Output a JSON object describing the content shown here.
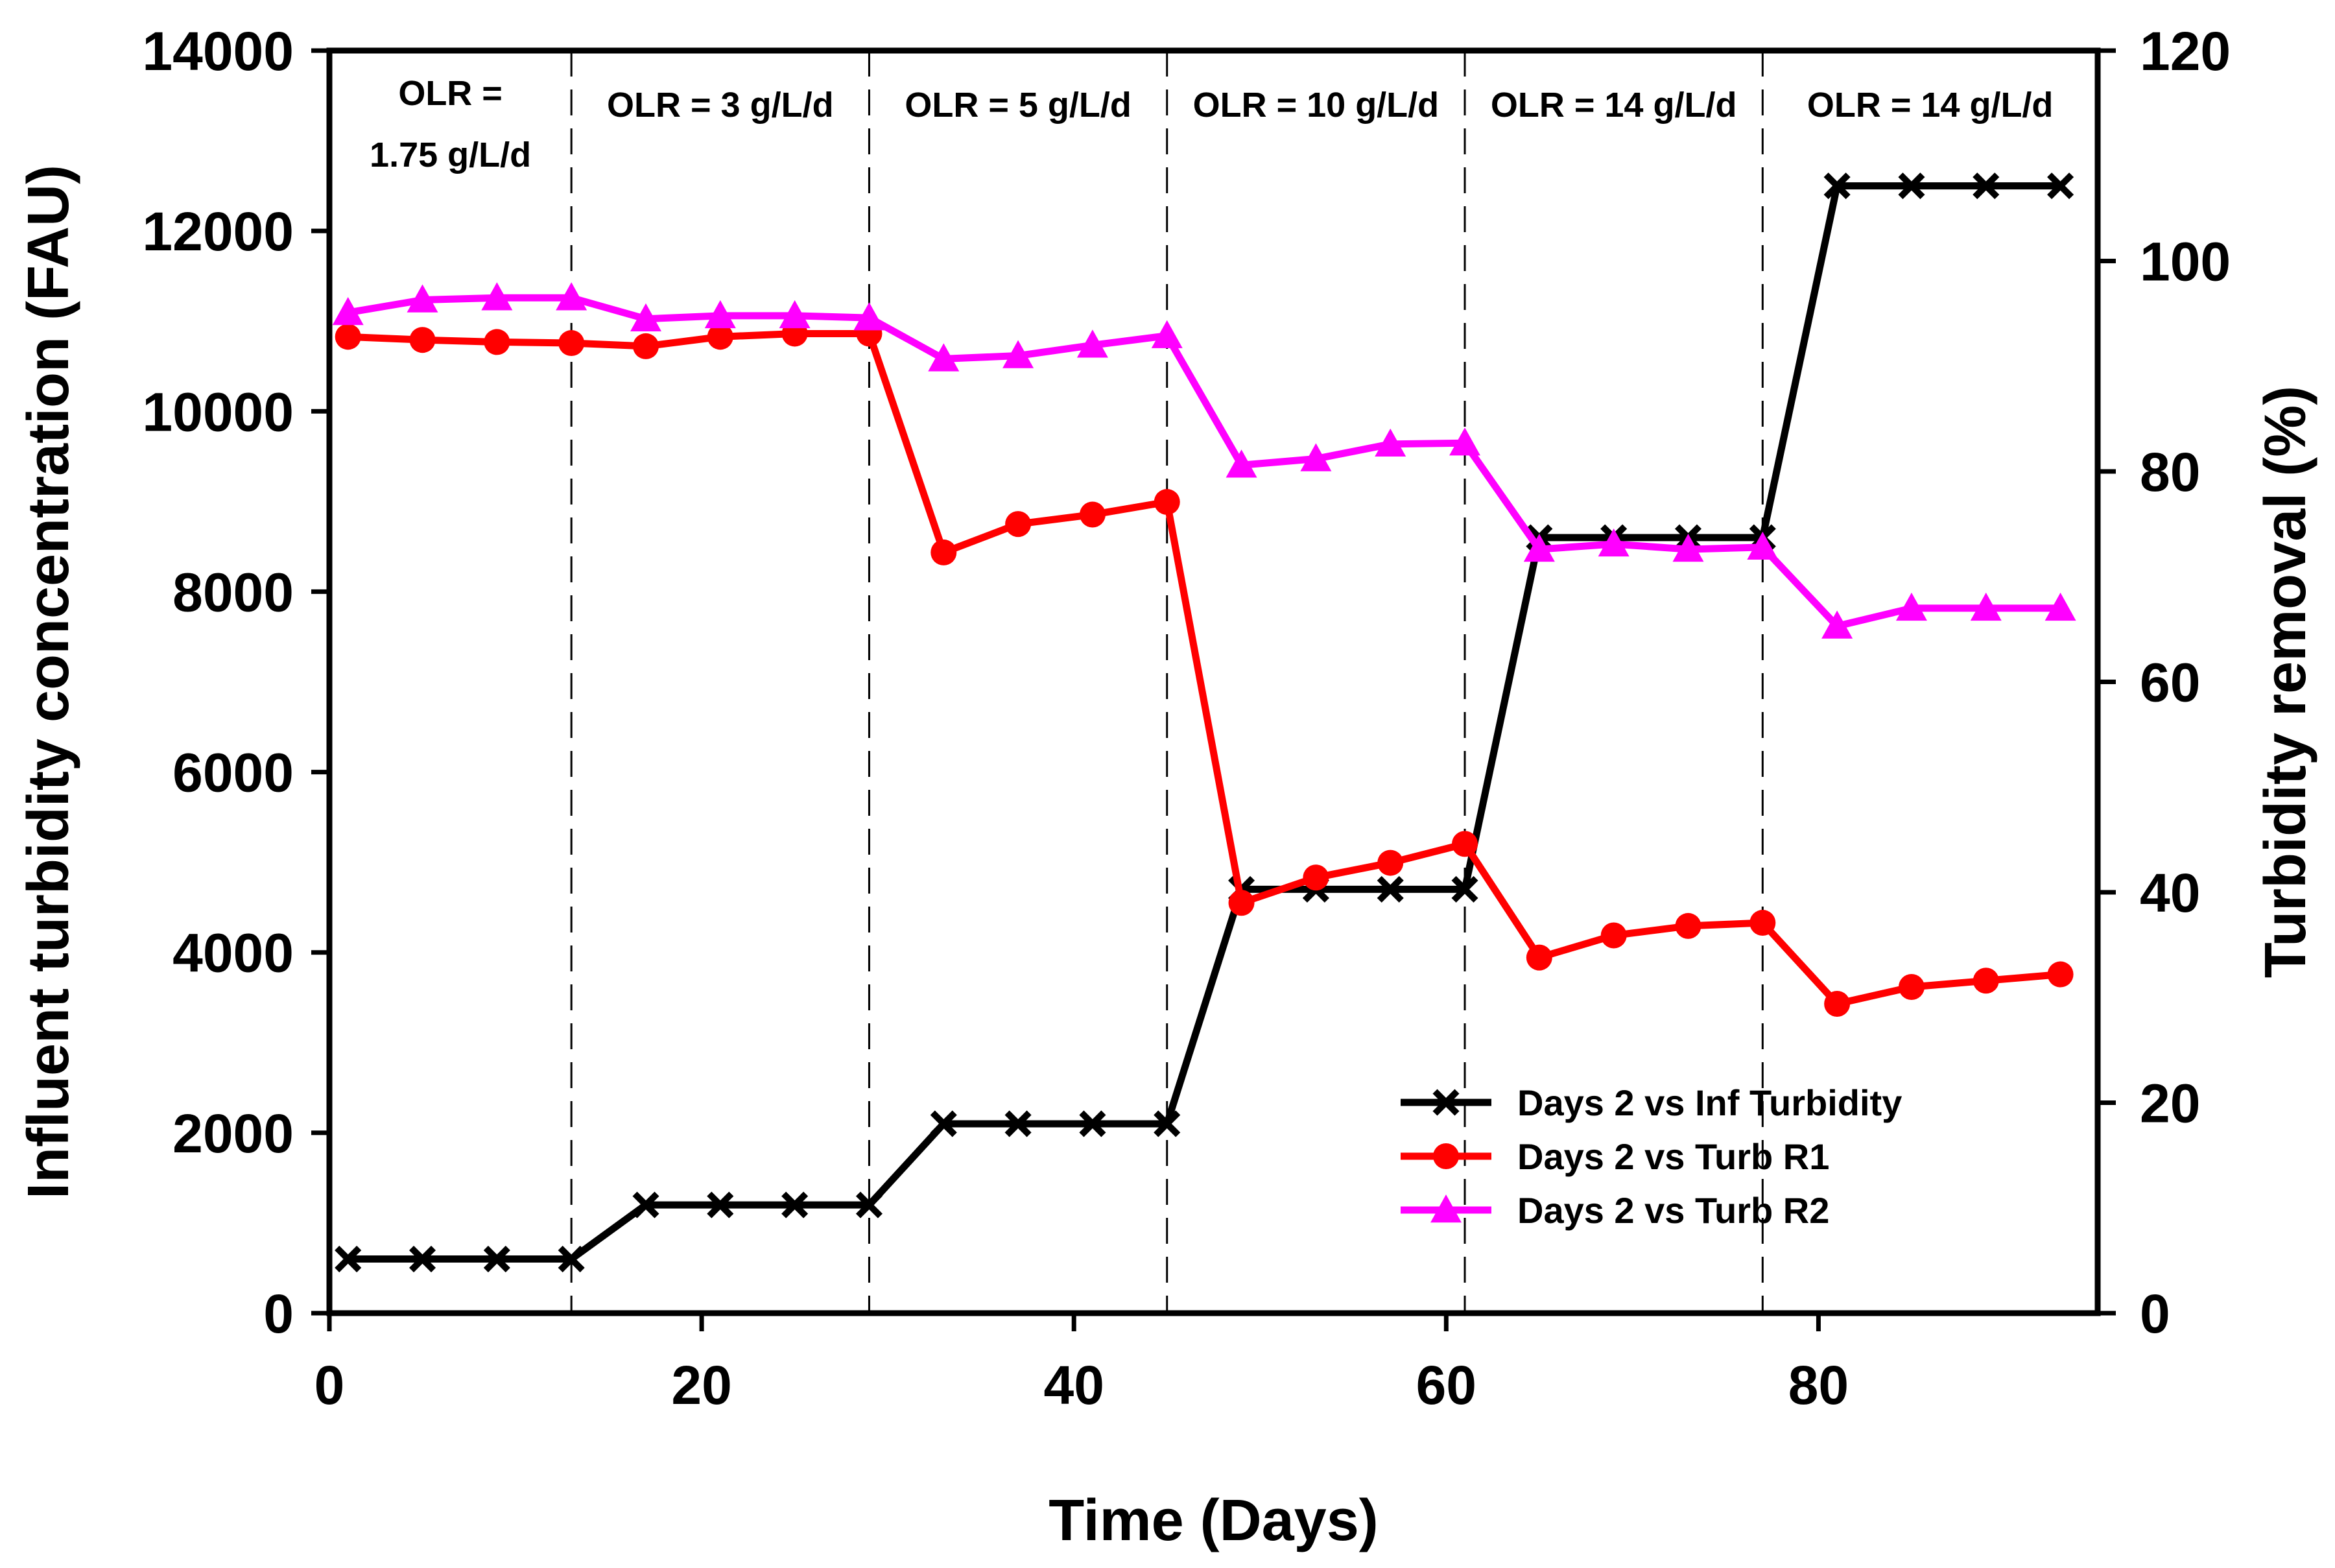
{
  "chart_data": {
    "type": "line",
    "title": "",
    "xlabel": "Time (Days)",
    "ylabel": "Influent turbidity concentration (FAU)",
    "y2label": "Turbidity removal (%)",
    "xlim": [
      0,
      95
    ],
    "ylim": [
      0,
      14000
    ],
    "y2lim": [
      0,
      120
    ],
    "x_ticks": [
      0,
      20,
      40,
      60,
      80
    ],
    "y_ticks": [
      0,
      2000,
      4000,
      6000,
      8000,
      10000,
      12000,
      14000
    ],
    "y2_ticks": [
      0,
      20,
      40,
      60,
      80,
      100,
      120
    ],
    "grid": false,
    "legend_position": "bottom-right",
    "phase_boundaries": [
      13,
      29,
      45,
      61,
      77
    ],
    "phase_labels": [
      {
        "lines": [
          "OLR =",
          "1.75 g/L/d"
        ],
        "x_start": 0,
        "x_end": 13
      },
      {
        "lines": [
          "OLR = 3 g/L/d"
        ],
        "x_start": 13,
        "x_end": 29
      },
      {
        "lines": [
          "OLR = 5 g/L/d"
        ],
        "x_start": 29,
        "x_end": 45
      },
      {
        "lines": [
          "OLR =  10 g/L/d"
        ],
        "x_start": 45,
        "x_end": 61
      },
      {
        "lines": [
          "OLR = 14 g/L/d"
        ],
        "x_start": 61,
        "x_end": 77
      },
      {
        "lines": [
          "OLR = 14 g/L/d"
        ],
        "x_start": 77,
        "x_end": 95
      }
    ],
    "series": [
      {
        "name": "Days 2 vs Inf Turbidity",
        "axis": "left",
        "color": "#000000",
        "marker": "x",
        "x": [
          1,
          5,
          9,
          13,
          17,
          21,
          25,
          29,
          33,
          37,
          41,
          45,
          49,
          53,
          57,
          61,
          65,
          69,
          73,
          77,
          81,
          85,
          89,
          93
        ],
        "y": [
          600,
          600,
          600,
          600,
          1200,
          1200,
          1200,
          1200,
          2100,
          2100,
          2100,
          2100,
          4700,
          4700,
          4700,
          4700,
          8600,
          8600,
          8600,
          8600,
          12500,
          12500,
          12500,
          12500
        ]
      },
      {
        "name": "Days 2 vs Turb R1",
        "axis": "right",
        "color": "#ff0000",
        "marker": "circle",
        "x": [
          1,
          5,
          9,
          13,
          17,
          21,
          25,
          29,
          33,
          37,
          41,
          45,
          49,
          53,
          57,
          61,
          65,
          69,
          73,
          77,
          81,
          85,
          89,
          93
        ],
        "y": [
          92.8,
          92.5,
          92.3,
          92.2,
          91.9,
          92.8,
          93.1,
          93.1,
          72.3,
          75.0,
          75.9,
          77.1,
          39.0,
          41.4,
          42.8,
          44.6,
          33.8,
          35.9,
          36.8,
          37.1,
          29.4,
          31.0,
          31.6,
          32.2
        ]
      },
      {
        "name": "Days 2 vs Turb R2",
        "axis": "right",
        "color": "#ff00ff",
        "marker": "triangle",
        "x": [
          1,
          5,
          9,
          13,
          17,
          21,
          25,
          29,
          33,
          37,
          41,
          45,
          49,
          53,
          57,
          61,
          65,
          69,
          73,
          77,
          81,
          85,
          89,
          93
        ],
        "y": [
          95.1,
          96.3,
          96.5,
          96.5,
          94.5,
          94.8,
          94.8,
          94.6,
          90.7,
          91.0,
          92.0,
          92.9,
          80.6,
          81.2,
          82.6,
          82.7,
          72.6,
          73.1,
          72.6,
          72.8,
          65.3,
          67.0,
          67.0,
          67.0
        ]
      }
    ]
  }
}
